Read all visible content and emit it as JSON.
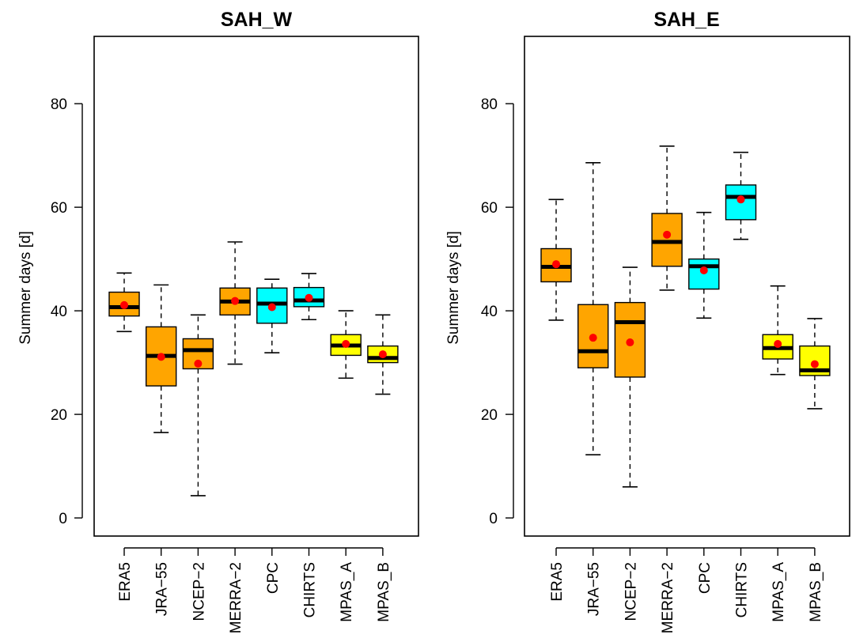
{
  "chart_data": [
    {
      "type": "boxplot",
      "title": "SAH_W",
      "ylabel": "Summer days [d]",
      "xlabel": "",
      "ylim": [
        -3.5,
        93
      ],
      "yticks": [
        0,
        20,
        40,
        60,
        80
      ],
      "grid": false,
      "legend": "none",
      "categories": [
        "ERA5",
        "JRA−55",
        "NCEP−2",
        "MERRA−2",
        "CPC",
        "CHIRTS",
        "MPAS_A",
        "MPAS_B"
      ],
      "fill_colors": [
        "#FFA500",
        "#FFA500",
        "#FFA500",
        "#FFA500",
        "#00FFFF",
        "#00FFFF",
        "#FFFF00",
        "#FFFF00"
      ],
      "mean_color": "#FF0000",
      "boxes": [
        {
          "min": 36.0,
          "q1": 39.0,
          "median": 40.7,
          "q3": 43.6,
          "max": 47.3,
          "mean": 41.1
        },
        {
          "min": 16.5,
          "q1": 25.5,
          "median": 31.3,
          "q3": 36.9,
          "max": 45.0,
          "mean": 31.1
        },
        {
          "min": 4.3,
          "q1": 28.8,
          "median": 32.4,
          "q3": 34.6,
          "max": 39.2,
          "mean": 29.8
        },
        {
          "min": 29.7,
          "q1": 39.2,
          "median": 41.8,
          "q3": 44.4,
          "max": 53.3,
          "mean": 41.9
        },
        {
          "min": 31.9,
          "q1": 37.6,
          "median": 41.4,
          "q3": 44.4,
          "max": 46.1,
          "mean": 40.7
        },
        {
          "min": 38.3,
          "q1": 40.8,
          "median": 42.0,
          "q3": 44.5,
          "max": 47.2,
          "mean": 42.5
        },
        {
          "min": 27.0,
          "q1": 31.4,
          "median": 33.3,
          "q3": 35.4,
          "max": 40.0,
          "mean": 33.6
        },
        {
          "min": 23.9,
          "q1": 30.0,
          "median": 30.9,
          "q3": 33.2,
          "max": 39.2,
          "mean": 31.6
        }
      ]
    },
    {
      "type": "boxplot",
      "title": "SAH_E",
      "ylabel": "Summer days [d]",
      "xlabel": "",
      "ylim": [
        -3.5,
        93
      ],
      "yticks": [
        0,
        20,
        40,
        60,
        80
      ],
      "grid": false,
      "legend": "none",
      "categories": [
        "ERA5",
        "JRA−55",
        "NCEP−2",
        "MERRA−2",
        "CPC",
        "CHIRTS",
        "MPAS_A",
        "MPAS_B"
      ],
      "fill_colors": [
        "#FFA500",
        "#FFA500",
        "#FFA500",
        "#FFA500",
        "#00FFFF",
        "#00FFFF",
        "#FFFF00",
        "#FFFF00"
      ],
      "mean_color": "#FF0000",
      "boxes": [
        {
          "min": 38.2,
          "q1": 45.6,
          "median": 48.5,
          "q3": 52.0,
          "max": 61.5,
          "mean": 49.0
        },
        {
          "min": 12.2,
          "q1": 29.0,
          "median": 32.2,
          "q3": 41.2,
          "max": 68.6,
          "mean": 34.8
        },
        {
          "min": 6.0,
          "q1": 27.2,
          "median": 37.8,
          "q3": 41.6,
          "max": 48.4,
          "mean": 33.9
        },
        {
          "min": 44.0,
          "q1": 48.6,
          "median": 53.3,
          "q3": 58.8,
          "max": 71.8,
          "mean": 54.7
        },
        {
          "min": 38.6,
          "q1": 44.2,
          "median": 48.6,
          "q3": 50.0,
          "max": 59.0,
          "mean": 47.8
        },
        {
          "min": 53.8,
          "q1": 57.6,
          "median": 62.0,
          "q3": 64.3,
          "max": 70.6,
          "mean": 61.5
        },
        {
          "min": 27.7,
          "q1": 30.7,
          "median": 32.8,
          "q3": 35.4,
          "max": 44.8,
          "mean": 33.6
        },
        {
          "min": 21.1,
          "q1": 27.5,
          "median": 28.5,
          "q3": 33.2,
          "max": 38.5,
          "mean": 29.7
        }
      ]
    }
  ]
}
